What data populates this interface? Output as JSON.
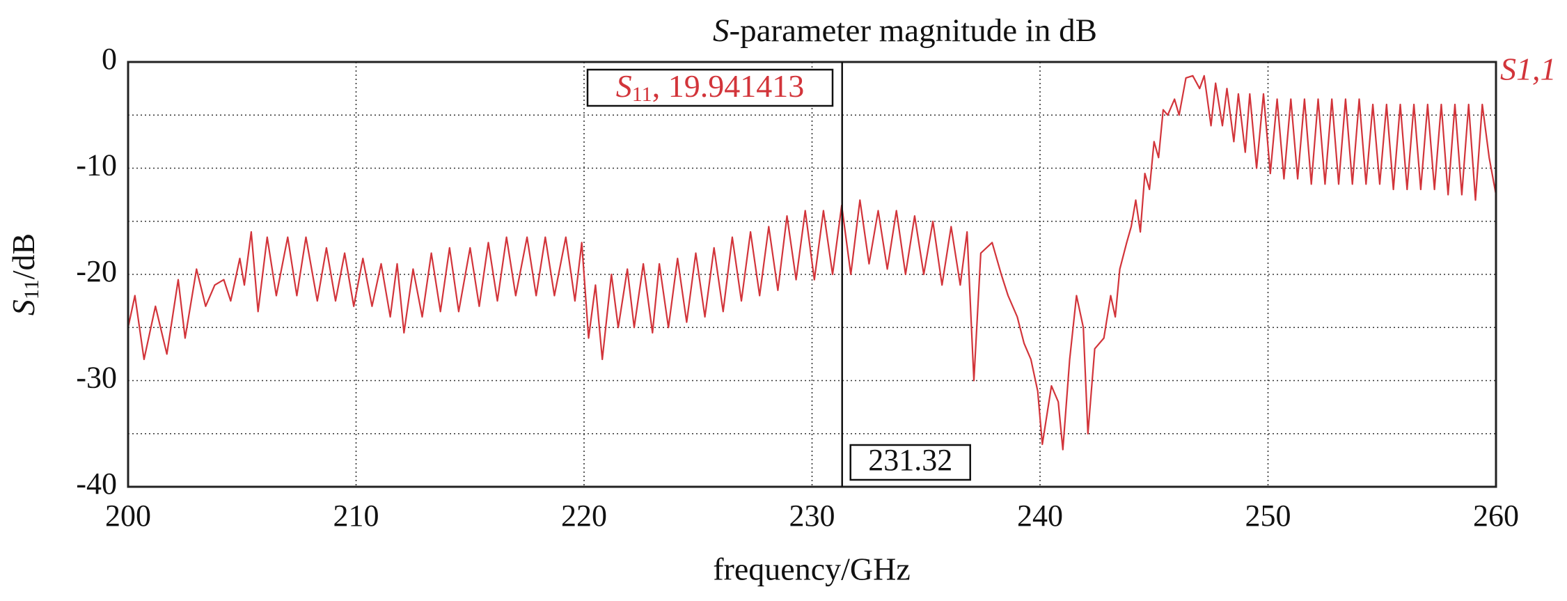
{
  "chart_data": {
    "type": "line",
    "title": {
      "italic": "S",
      "rest": "-parameter magnitude in dB"
    },
    "x_label": "frequency/GHz",
    "y_label": {
      "italic": "S",
      "sub": "11",
      "rest": "/dB"
    },
    "xlim": [
      200,
      260
    ],
    "xticks": [
      200,
      210,
      220,
      230,
      240,
      250,
      260
    ],
    "ylim": [
      -40,
      0
    ],
    "yticks": [
      0,
      -10,
      -20,
      -30,
      -40
    ],
    "yminor": [
      -5,
      -15,
      -25,
      -35
    ],
    "grid": true,
    "marker": {
      "x": 231.32,
      "italic": "S",
      "sub": "11",
      "rest": ", 19.941413"
    },
    "series": [
      {
        "name": "S1,1",
        "color": "#d2343a",
        "x": [
          200,
          200.3,
          200.7,
          201.2,
          201.7,
          202.2,
          202.5,
          203,
          203.4,
          203.8,
          204.2,
          204.5,
          204.9,
          205.1,
          205.4,
          205.7,
          206.1,
          206.5,
          207,
          207.4,
          207.8,
          208.3,
          208.7,
          209.1,
          209.5,
          209.9,
          210.3,
          210.7,
          211.1,
          211.5,
          211.8,
          212.1,
          212.5,
          212.9,
          213.3,
          213.7,
          214.1,
          214.5,
          215,
          215.4,
          215.8,
          216.2,
          216.6,
          217,
          217.5,
          217.9,
          218.3,
          218.7,
          219.2,
          219.6,
          219.9,
          220.2,
          220.5,
          220.8,
          221.2,
          221.5,
          221.9,
          222.2,
          222.6,
          223,
          223.3,
          223.7,
          224.1,
          224.5,
          224.9,
          225.3,
          225.7,
          226.1,
          226.5,
          226.9,
          227.3,
          227.7,
          228.1,
          228.5,
          228.9,
          229.3,
          229.7,
          230.1,
          230.5,
          230.9,
          231.3,
          231.7,
          232.1,
          232.5,
          232.9,
          233.3,
          233.7,
          234.1,
          234.5,
          234.9,
          235.3,
          235.7,
          236.1,
          236.5,
          236.8,
          237.1,
          237.4,
          237.9,
          238.3,
          238.6,
          239,
          239.3,
          239.6,
          239.9,
          240.1,
          240.5,
          240.8,
          241,
          241.3,
          241.6,
          241.9,
          242.1,
          242.4,
          242.8,
          243.1,
          243.3,
          243.5,
          243.8,
          244,
          244.2,
          244.4,
          244.6,
          244.8,
          245,
          245.2,
          245.4,
          245.6,
          245.9,
          246.1,
          246.4,
          246.7,
          247,
          247.2,
          247.5,
          247.7,
          248,
          248.2,
          248.5,
          248.7,
          249,
          249.2,
          249.5,
          249.8,
          250.1,
          250.4,
          250.7,
          251,
          251.3,
          251.6,
          251.9,
          252.2,
          252.5,
          252.8,
          253.1,
          253.4,
          253.7,
          254,
          254.3,
          254.6,
          254.9,
          255.2,
          255.5,
          255.8,
          256.1,
          256.4,
          256.7,
          257,
          257.3,
          257.6,
          257.9,
          258.2,
          258.5,
          258.8,
          259.1,
          259.4,
          259.7,
          260
        ],
        "values": [
          -25,
          -22,
          -28,
          -23,
          -27.5,
          -20.5,
          -26,
          -19.5,
          -23,
          -21,
          -20.5,
          -22.5,
          -18.5,
          -21,
          -16,
          -23.5,
          -16.5,
          -22,
          -16.5,
          -22,
          -16.5,
          -22.5,
          -17.5,
          -22.5,
          -18,
          -23,
          -18.5,
          -23,
          -19,
          -24,
          -19,
          -25.5,
          -19.5,
          -24,
          -18,
          -23.5,
          -17.5,
          -23.5,
          -17.5,
          -23,
          -17,
          -22.5,
          -16.5,
          -22,
          -16.5,
          -22,
          -16.5,
          -22,
          -16.5,
          -22.5,
          -17,
          -26,
          -21,
          -28,
          -20,
          -25,
          -19.5,
          -25,
          -19,
          -25.5,
          -19,
          -25,
          -18.5,
          -24.5,
          -18,
          -24,
          -17.5,
          -23.5,
          -16.5,
          -22.5,
          -16,
          -22,
          -15.5,
          -21.5,
          -14.5,
          -20.5,
          -14,
          -20.5,
          -14,
          -20,
          -13.5,
          -20,
          -13,
          -19,
          -14,
          -19.5,
          -14,
          -20,
          -14.5,
          -20,
          -15,
          -21,
          -15.5,
          -21,
          -16,
          -30,
          -18,
          -17,
          -20,
          -22,
          -24,
          -26.5,
          -28,
          -31,
          -36,
          -30.5,
          -32,
          -36.5,
          -28,
          -22,
          -25,
          -35,
          -27,
          -26,
          -22,
          -24,
          -19.5,
          -17,
          -15.5,
          -13,
          -16,
          -10.5,
          -12,
          -7.5,
          -9,
          -4.5,
          -5,
          -3.5,
          -5,
          -1.5,
          -1.3,
          -2.5,
          -1.3,
          -6,
          -2,
          -6,
          -2.5,
          -7.5,
          -3,
          -8.5,
          -3,
          -10,
          -3,
          -10.5,
          -3.5,
          -11,
          -3.5,
          -11,
          -3.5,
          -11.5,
          -3.5,
          -11.5,
          -3.5,
          -11.5,
          -3.5,
          -11.5,
          -3.5,
          -11.5,
          -4,
          -11.5,
          -4,
          -12,
          -4,
          -12,
          -4,
          -12,
          -4,
          -12,
          -4,
          -12.5,
          -4,
          -12.5,
          -4,
          -13,
          -4,
          -9,
          -12.5
        ]
      }
    ]
  }
}
